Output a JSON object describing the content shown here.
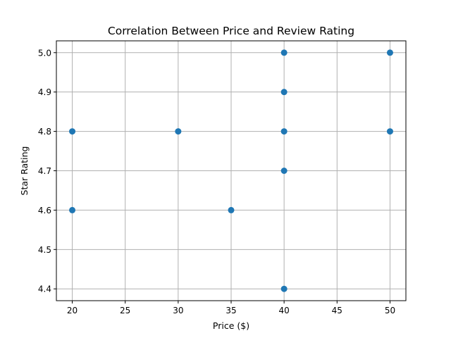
{
  "chart_data": {
    "type": "scatter",
    "title": "Correlation Between Price and Review Rating",
    "xlabel": "Price ($)",
    "ylabel": "Star Rating",
    "xlim": [
      18.5,
      51.5
    ],
    "ylim": [
      4.37,
      5.03
    ],
    "xticks": [
      20,
      25,
      30,
      35,
      40,
      45,
      50
    ],
    "xtick_labels": [
      "20",
      "25",
      "30",
      "35",
      "40",
      "45",
      "50"
    ],
    "yticks": [
      4.4,
      4.5,
      4.6,
      4.7,
      4.8,
      4.9,
      5.0
    ],
    "ytick_labels": [
      "4.4",
      "4.5",
      "4.6",
      "4.7",
      "4.8",
      "4.9",
      "5.0"
    ],
    "grid": true,
    "marker_color": "#1f77b4",
    "points": [
      {
        "x": 20,
        "y": 4.8
      },
      {
        "x": 20,
        "y": 4.6
      },
      {
        "x": 30,
        "y": 4.8
      },
      {
        "x": 35,
        "y": 4.6
      },
      {
        "x": 40,
        "y": 5.0
      },
      {
        "x": 40,
        "y": 4.9
      },
      {
        "x": 40,
        "y": 4.8
      },
      {
        "x": 40,
        "y": 4.7
      },
      {
        "x": 40,
        "y": 4.4
      },
      {
        "x": 50,
        "y": 5.0
      },
      {
        "x": 50,
        "y": 4.8
      }
    ]
  }
}
